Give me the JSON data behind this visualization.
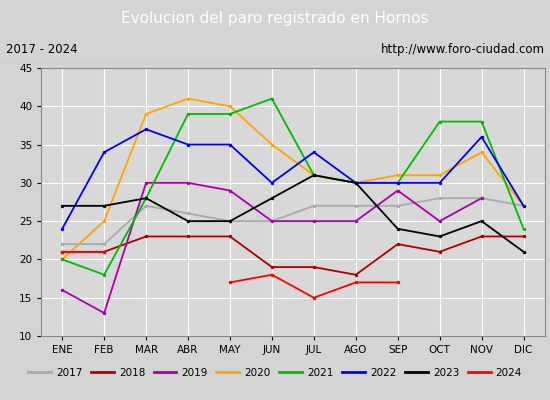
{
  "title": "Evolucion del paro registrado en Hornos",
  "subtitle_left": "2017 - 2024",
  "subtitle_right": "http://www.foro-ciudad.com",
  "months": [
    "ENE",
    "FEB",
    "MAR",
    "ABR",
    "MAY",
    "JUN",
    "JUL",
    "AGO",
    "SEP",
    "OCT",
    "NOV",
    "DIC"
  ],
  "ylim": [
    10,
    45
  ],
  "yticks": [
    10,
    15,
    20,
    25,
    30,
    35,
    40,
    45
  ],
  "series": {
    "2017": {
      "color": "#aaaaaa",
      "data": [
        22,
        22,
        27,
        26,
        25,
        25,
        27,
        27,
        27,
        28,
        28,
        27
      ]
    },
    "2018": {
      "color": "#aa0000",
      "data": [
        21,
        21,
        23,
        23,
        23,
        19,
        19,
        18,
        22,
        21,
        23,
        23
      ]
    },
    "2019": {
      "color": "#aa00aa",
      "data": [
        16,
        13,
        30,
        30,
        29,
        25,
        25,
        25,
        29,
        25,
        28,
        null
      ]
    },
    "2020": {
      "color": "#ffa500",
      "data": [
        20,
        25,
        39,
        41,
        40,
        35,
        31,
        30,
        31,
        31,
        34,
        27
      ]
    },
    "2021": {
      "color": "#00bb00",
      "data": [
        20,
        18,
        28,
        39,
        39,
        41,
        31,
        30,
        30,
        38,
        38,
        24
      ]
    },
    "2022": {
      "color": "#0000ee",
      "data": [
        24,
        34,
        37,
        35,
        35,
        30,
        34,
        30,
        30,
        30,
        36,
        27
      ]
    },
    "2023": {
      "color": "#000000",
      "data": [
        27,
        27,
        28,
        25,
        25,
        28,
        31,
        30,
        24,
        23,
        25,
        21
      ]
    },
    "2024": {
      "color": "#ff0000",
      "data": [
        21,
        21,
        null,
        null,
        17,
        18,
        15,
        17,
        17,
        null,
        null,
        null
      ]
    }
  },
  "bg_color": "#d4d4d4",
  "plot_bg_color": "#d8d8d8",
  "title_bg_color": "#4a7ab5",
  "subtitle_bg_color": "#c8c8c8",
  "legend_bg_color": "#f0f0f0",
  "legend_border_color": "#888888",
  "grid_color": "#ffffff",
  "figsize": [
    5.5,
    4.0
  ],
  "dpi": 100
}
